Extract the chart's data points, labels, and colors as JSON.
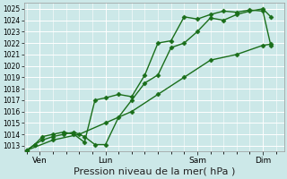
{
  "title": "",
  "xlabel": "Pression niveau de la mer( hPa )",
  "ylabel": "",
  "bg_color": "#cce8e8",
  "grid_color": "#ffffff",
  "line_color": "#1a6e1a",
  "ylim": [
    1012.5,
    1025.5
  ],
  "yticks": [
    1013,
    1014,
    1015,
    1016,
    1017,
    1018,
    1019,
    1020,
    1021,
    1022,
    1023,
    1024,
    1025
  ],
  "xtick_labels": [
    "Ven",
    "Lun",
    "Sam",
    "Dim"
  ],
  "xtick_positions": [
    0.5,
    3.0,
    6.5,
    9.0
  ],
  "series": [
    {
      "x": [
        0.0,
        0.3,
        0.6,
        1.0,
        1.4,
        1.8,
        2.2,
        2.6,
        3.0,
        3.5,
        4.0,
        4.5,
        5.0,
        5.5,
        6.0,
        6.5,
        7.0,
        7.5,
        8.0,
        8.5,
        9.0,
        9.3
      ],
      "y": [
        1012.6,
        1013.1,
        1013.5,
        1013.8,
        1014.0,
        1014.2,
        1013.8,
        1013.1,
        1013.1,
        1015.5,
        1017.0,
        1018.5,
        1019.2,
        1021.6,
        1022.0,
        1023.0,
        1024.2,
        1024.0,
        1024.5,
        1024.8,
        1025.0,
        1024.3
      ],
      "marker": "D",
      "linestyle": "-"
    },
    {
      "x": [
        0.0,
        0.3,
        0.6,
        1.0,
        1.4,
        1.8,
        2.2,
        2.6,
        3.0,
        3.5,
        4.0,
        4.5,
        5.0,
        5.5,
        6.0,
        6.5,
        7.0,
        7.5,
        8.0,
        8.5,
        9.0,
        9.3
      ],
      "y": [
        1012.6,
        1013.1,
        1013.8,
        1014.0,
        1014.2,
        1014.0,
        1013.3,
        1017.0,
        1017.2,
        1017.5,
        1017.3,
        1019.2,
        1022.0,
        1022.2,
        1024.3,
        1024.1,
        1024.5,
        1024.8,
        1024.7,
        1024.9,
        1024.8,
        1021.8
      ],
      "marker": "D",
      "linestyle": "-"
    },
    {
      "x": [
        0.0,
        1.0,
        2.0,
        3.0,
        4.0,
        5.0,
        6.0,
        7.0,
        8.0,
        9.0,
        9.3
      ],
      "y": [
        1012.6,
        1013.5,
        1014.0,
        1015.0,
        1016.0,
        1017.5,
        1019.0,
        1020.5,
        1021.0,
        1021.8,
        1021.9
      ],
      "marker": "D",
      "linestyle": "-"
    }
  ],
  "marker_size": 2.5,
  "line_width": 1.0,
  "font_size_xlabel": 8,
  "xlim": [
    -0.1,
    9.8
  ]
}
